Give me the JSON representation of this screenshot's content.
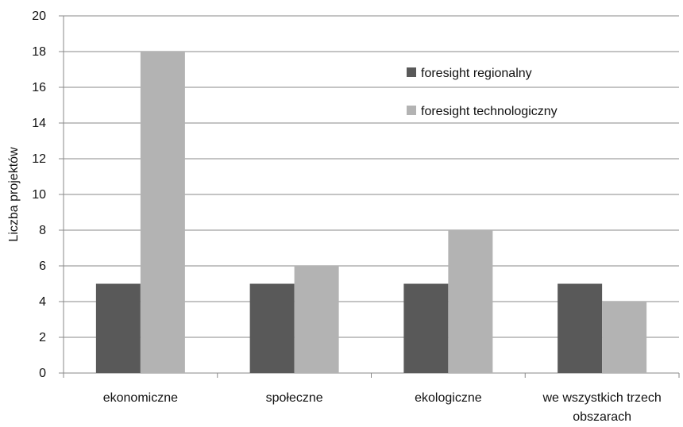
{
  "chart_data": {
    "type": "bar",
    "title": "",
    "xlabel": "",
    "ylabel": "Liczba projektów",
    "ylim": [
      0,
      20
    ],
    "yticks": [
      0,
      2,
      4,
      6,
      8,
      10,
      12,
      14,
      16,
      18,
      20
    ],
    "grid": true,
    "legend_position": "top-right",
    "categories": [
      [
        "ekonomiczne"
      ],
      [
        "społeczne"
      ],
      [
        "ekologiczne"
      ],
      [
        "we wszystkich trzech",
        "obszarach"
      ]
    ],
    "series": [
      {
        "name": "foresight regionalny",
        "color": "#595959",
        "values": [
          5,
          5,
          5,
          5
        ]
      },
      {
        "name": "foresight technologiczny",
        "color": "#b3b3b3",
        "values": [
          18,
          6,
          8,
          4
        ]
      }
    ]
  }
}
